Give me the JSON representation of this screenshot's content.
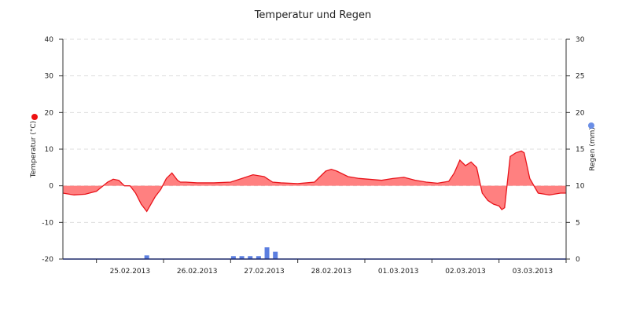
{
  "colors": {
    "temperature_line": "#e8141b",
    "temperature_fill": "#ff8080",
    "rain": "#5b7ee0",
    "temp_marker": "#ee1111",
    "rain_marker": "#6a8ee6",
    "grid": "#dddddd",
    "axis": "#333333"
  },
  "chart_data": {
    "type": "line",
    "title": "Temperatur und Regen",
    "y_left": {
      "label": "Temperatur (°C)",
      "min": -20,
      "max": 40,
      "ticks": [
        "-20",
        "-10",
        "0",
        "10",
        "20",
        "30",
        "40"
      ]
    },
    "y_right": {
      "label": "Regen (mm)",
      "min": 0,
      "max": 30,
      "ticks": [
        "0",
        "5",
        "10",
        "15",
        "20",
        "25",
        "30"
      ]
    },
    "x_range": [
      "2013-02-24 12:00",
      "2013-03-04 00:00"
    ],
    "x_tick_labels": [
      "25.02.2013",
      "26.02.2013",
      "27.02.2013",
      "28.02.2013",
      "01.03.2013",
      "02.03.2013",
      "03.03.2013"
    ],
    "grid": true,
    "series": [
      {
        "type": "area",
        "x": [
          "2013-02-24 12:00",
          "2013-02-24 16:00",
          "2013-02-24 20:00",
          "2013-02-25 00:00",
          "2013-02-25 04:00",
          "2013-02-25 06:00",
          "2013-02-25 08:00",
          "2013-02-25 10:00",
          "2013-02-25 12:00",
          "2013-02-25 14:00",
          "2013-02-25 16:00",
          "2013-02-25 18:00",
          "2013-02-25 21:00",
          "2013-02-25 23:00",
          "2013-02-26 01:00",
          "2013-02-26 03:00",
          "2013-02-26 05:00",
          "2013-02-26 06:00",
          "2013-02-26 08:00",
          "2013-02-26 12:00",
          "2013-02-26 18:00",
          "2013-02-27 00:00",
          "2013-02-27 04:00",
          "2013-02-27 08:00",
          "2013-02-27 12:00",
          "2013-02-27 15:00",
          "2013-02-27 18:00",
          "2013-02-28 00:00",
          "2013-02-28 06:00",
          "2013-02-28 10:00",
          "2013-02-28 12:00",
          "2013-02-28 14:00",
          "2013-02-28 18:00",
          "2013-02-28 22:00",
          "2013-03-01 06:00",
          "2013-03-01 10:00",
          "2013-03-01 14:00",
          "2013-03-01 18:00",
          "2013-03-01 22:00",
          "2013-03-02 02:00",
          "2013-03-02 06:00",
          "2013-03-02 08:00",
          "2013-03-02 10:00",
          "2013-03-02 12:00",
          "2013-03-02 14:00",
          "2013-03-02 16:00",
          "2013-03-02 18:00",
          "2013-03-02 20:00",
          "2013-03-02 22:00",
          "2013-03-03 00:00",
          "2013-03-03 01:00",
          "2013-03-03 02:00",
          "2013-03-03 04:00",
          "2013-03-03 06:00",
          "2013-03-03 08:00",
          "2013-03-03 09:00",
          "2013-03-03 11:00",
          "2013-03-03 14:00",
          "2013-03-03 18:00",
          "2013-03-03 22:00",
          "2013-03-04 00:00"
        ],
        "values": [
          -2,
          -2.5,
          -2.3,
          -1.5,
          1,
          1.8,
          1.5,
          0,
          0,
          -2,
          -5,
          -7,
          -3,
          -1,
          2,
          3.5,
          1.5,
          1,
          1,
          0.8,
          0.8,
          1,
          2,
          3,
          2.5,
          1,
          0.8,
          0.6,
          1,
          4,
          4.5,
          4,
          2.5,
          2,
          1.5,
          2,
          2.3,
          1.5,
          1,
          0.7,
          1.2,
          3.5,
          7,
          5.5,
          6.5,
          5,
          -2,
          -4,
          -5,
          -5.5,
          -6.5,
          -6,
          8,
          9,
          9.5,
          9,
          2,
          -2,
          -2.5,
          -2,
          -2
        ]
      },
      {
        "type": "bar",
        "axis": "right",
        "x": [
          "2013-02-25 18:00",
          "2013-02-27 01:00",
          "2013-02-27 04:00",
          "2013-02-27 07:00",
          "2013-02-27 10:00",
          "2013-02-27 13:00",
          "2013-02-27 16:00"
        ],
        "values": [
          0.5,
          0.4,
          0.4,
          0.4,
          0.4,
          1.6,
          1.0
        ]
      }
    ]
  }
}
